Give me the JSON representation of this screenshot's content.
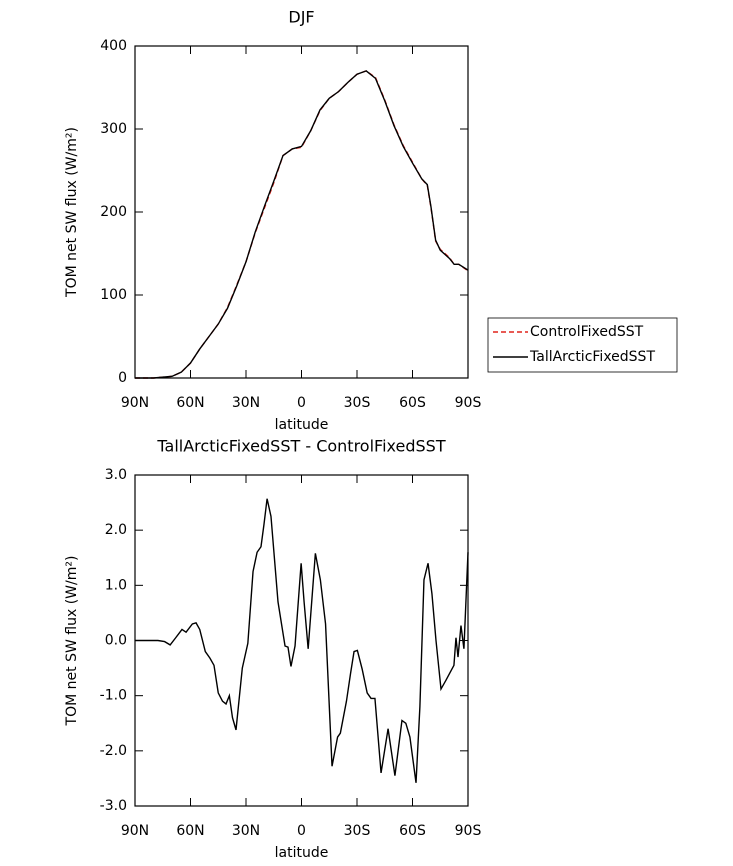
{
  "chart_data": [
    {
      "type": "line",
      "title": "DJF",
      "xlabel": "latitude",
      "ylabel": "TOM net SW flux (W/m²)",
      "x": [
        90,
        80,
        70,
        65,
        60,
        55,
        50,
        45,
        40,
        35,
        30,
        25,
        20,
        15,
        10,
        5,
        0,
        -5,
        -10,
        -15,
        -20,
        -25,
        -30,
        -35,
        -40,
        -45,
        -50,
        -55,
        -60,
        -65,
        -68,
        -70,
        -72.5,
        -75,
        -80,
        -82.5,
        -85,
        -90
      ],
      "series": [
        {
          "name": "ControlFixedSST",
          "color": "#e0231c",
          "line_style": "dashed",
          "values": [
            0,
            0,
            2,
            7,
            18,
            35,
            50,
            65,
            85,
            112,
            140,
            175,
            205,
            235,
            268,
            276,
            278,
            298,
            322,
            337,
            345,
            356,
            366,
            370,
            362,
            335,
            305,
            280,
            260,
            240,
            232,
            205,
            165,
            155,
            145,
            137,
            137,
            129
          ]
        },
        {
          "name": "TallArcticFixedSST",
          "color": "#000000",
          "line_style": "solid",
          "values": [
            0,
            0,
            2,
            7,
            18,
            35,
            50,
            65,
            84,
            111,
            140,
            176,
            207,
            237,
            268,
            276,
            279,
            298,
            323,
            337,
            345,
            356,
            366,
            370,
            361,
            334,
            304,
            279,
            259,
            240,
            233,
            206,
            166,
            154,
            144,
            137,
            137,
            130
          ]
        }
      ],
      "xlim": [
        90,
        -90
      ],
      "xticks": [
        {
          "value": 90,
          "label": "90N"
        },
        {
          "value": 60,
          "label": "60N"
        },
        {
          "value": 30,
          "label": "30N"
        },
        0,
        {
          "value": -30,
          "label": "30S"
        },
        {
          "value": -60,
          "label": "60S"
        },
        {
          "value": -90,
          "label": "90S"
        }
      ],
      "ylim": [
        0,
        400
      ],
      "yticks": [
        0,
        100,
        200,
        300,
        400
      ],
      "legend": "right"
    },
    {
      "type": "line",
      "title": "TallArcticFixedSST - ControlFixedSST",
      "xlabel": "latitude",
      "ylabel": "TOM net SW flux (W/m²)",
      "x": [
        90,
        82,
        77.6,
        74,
        71,
        68,
        64.6,
        62.4,
        59,
        57,
        55,
        52,
        49.5,
        47.3,
        45,
        42.7,
        40.8,
        39,
        37.3,
        35.4,
        32,
        29,
        26.2,
        24,
        21.9,
        20.3,
        18.6,
        16.5,
        12.7,
        8.9,
        7.3,
        5.7,
        3.5,
        0.2,
        -1.4,
        -3.6,
        -7.5,
        -10.2,
        -13,
        -16.5,
        -19.5,
        -21,
        -24.3,
        -26.5,
        -28.4,
        -30.2,
        -32.8,
        -35.5,
        -37.6,
        -39.7,
        -43,
        -46.8,
        -50.5,
        -54.3,
        -56.4,
        -58.6,
        -61.9,
        -64,
        -66.2,
        -68.4,
        -70.5,
        -72.7,
        -75.4,
        -78.1,
        -80.8,
        -82.4,
        -83.5,
        -84.6,
        -86.2,
        -87.8,
        -90
      ],
      "color": "#000000",
      "values": [
        0,
        0,
        0,
        -0.02,
        -0.08,
        0.05,
        0.2,
        0.15,
        0.3,
        0.32,
        0.2,
        -0.2,
        -0.32,
        -0.45,
        -0.95,
        -1.1,
        -1.15,
        -1.0,
        -1.4,
        -1.62,
        -0.5,
        -0.05,
        1.25,
        1.6,
        1.7,
        2.1,
        2.57,
        2.25,
        0.7,
        -0.1,
        -0.12,
        -0.47,
        -0.1,
        1.4,
        0.7,
        -0.15,
        1.58,
        1.1,
        0.3,
        -2.28,
        -1.75,
        -1.68,
        -1.1,
        -0.6,
        -0.2,
        -0.18,
        -0.52,
        -0.95,
        -1.05,
        -1.05,
        -2.4,
        -1.6,
        -2.45,
        -1.45,
        -1.5,
        -1.75,
        -2.58,
        -1.2,
        1.1,
        1.4,
        0.85,
        0,
        -0.88,
        -0.72,
        -0.55,
        -0.45,
        0.05,
        -0.3,
        0.27,
        -0.15,
        1.6
      ],
      "xlim": [
        90,
        -90
      ],
      "xticks": [
        {
          "value": 90,
          "label": "90N"
        },
        {
          "value": 60,
          "label": "60N"
        },
        {
          "value": 30,
          "label": "30N"
        },
        0,
        {
          "value": -30,
          "label": "30S"
        },
        {
          "value": -60,
          "label": "60S"
        },
        {
          "value": -90,
          "label": "90S"
        }
      ],
      "ylim": [
        -3,
        3
      ],
      "yticks": [
        {
          "value": -3,
          "label": "-3.0"
        },
        {
          "value": -2,
          "label": "-2.0"
        },
        {
          "value": -1,
          "label": "-1.0"
        },
        {
          "value": 0,
          "label": "0.0"
        },
        {
          "value": 1,
          "label": "1.0"
        },
        {
          "value": 2,
          "label": "2.0"
        },
        {
          "value": 3,
          "label": "3.0"
        }
      ]
    }
  ]
}
